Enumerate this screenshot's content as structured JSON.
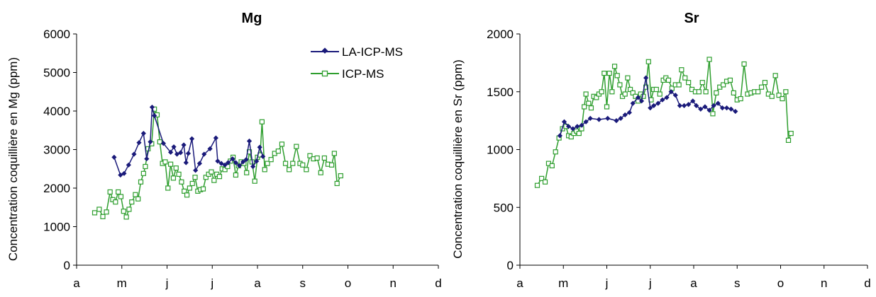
{
  "colors": {
    "la": "#1a1a7a",
    "icp": "#2e9e2e",
    "axis": "#000000",
    "background": "#ffffff"
  },
  "chart_data": [
    {
      "type": "line",
      "title": "Mg",
      "xlabel": "",
      "ylabel": "Concentration coquillière en Mg (ppm)",
      "x_ticks": [
        "a",
        "m",
        "j",
        "j",
        "a",
        "s",
        "o",
        "n",
        "d"
      ],
      "xlim": [
        0,
        8
      ],
      "ylim": [
        0,
        6000
      ],
      "y_ticks": [
        0,
        1000,
        2000,
        3000,
        4000,
        5000,
        6000
      ],
      "grid": false,
      "legend": {
        "placement": "top-right",
        "entries": [
          "LA-ICP-MS",
          "ICP-MS"
        ]
      },
      "series": [
        {
          "name": "LA-ICP-MS",
          "marker": "diamond",
          "points": [
            [
              0.83,
              2800
            ],
            [
              0.97,
              2340
            ],
            [
              1.05,
              2380
            ],
            [
              1.15,
              2600
            ],
            [
              1.27,
              2880
            ],
            [
              1.38,
              3180
            ],
            [
              1.48,
              3420
            ],
            [
              1.55,
              2760
            ],
            [
              1.63,
              3200
            ],
            [
              1.67,
              4100
            ],
            [
              1.72,
              3880
            ],
            [
              1.92,
              3160
            ],
            [
              2.08,
              2930
            ],
            [
              2.15,
              3070
            ],
            [
              2.22,
              2880
            ],
            [
              2.3,
              2920
            ],
            [
              2.37,
              3120
            ],
            [
              2.42,
              2660
            ],
            [
              2.47,
              2900
            ],
            [
              2.55,
              3280
            ],
            [
              2.63,
              2460
            ],
            [
              2.72,
              2640
            ],
            [
              2.82,
              2880
            ],
            [
              2.95,
              3020
            ],
            [
              3.08,
              3300
            ],
            [
              3.12,
              2700
            ],
            [
              3.2,
              2640
            ],
            [
              3.28,
              2600
            ],
            [
              3.35,
              2660
            ],
            [
              3.45,
              2760
            ],
            [
              3.52,
              2660
            ],
            [
              3.6,
              2580
            ],
            [
              3.68,
              2680
            ],
            [
              3.75,
              2740
            ],
            [
              3.82,
              3220
            ],
            [
              3.9,
              2560
            ],
            [
              3.98,
              2700
            ],
            [
              4.05,
              3060
            ],
            [
              4.12,
              2820
            ]
          ]
        },
        {
          "name": "ICP-MS",
          "marker": "square",
          "points": [
            [
              0.4,
              1360
            ],
            [
              0.5,
              1450
            ],
            [
              0.58,
              1260
            ],
            [
              0.66,
              1380
            ],
            [
              0.74,
              1900
            ],
            [
              0.8,
              1700
            ],
            [
              0.86,
              1640
            ],
            [
              0.92,
              1900
            ],
            [
              0.98,
              1780
            ],
            [
              1.04,
              1400
            ],
            [
              1.1,
              1250
            ],
            [
              1.16,
              1450
            ],
            [
              1.22,
              1640
            ],
            [
              1.3,
              1830
            ],
            [
              1.36,
              1720
            ],
            [
              1.42,
              2160
            ],
            [
              1.48,
              2380
            ],
            [
              1.52,
              2560
            ],
            [
              1.58,
              3020
            ],
            [
              1.66,
              3150
            ],
            [
              1.72,
              4050
            ],
            [
              1.78,
              3900
            ],
            [
              1.84,
              3200
            ],
            [
              1.9,
              2640
            ],
            [
              1.96,
              2680
            ],
            [
              2.02,
              2000
            ],
            [
              2.08,
              2620
            ],
            [
              2.14,
              2260
            ],
            [
              2.2,
              2520
            ],
            [
              2.26,
              2360
            ],
            [
              2.32,
              2160
            ],
            [
              2.38,
              1920
            ],
            [
              2.44,
              1820
            ],
            [
              2.5,
              2000
            ],
            [
              2.56,
              2120
            ],
            [
              2.62,
              2280
            ],
            [
              2.68,
              1920
            ],
            [
              2.74,
              1960
            ],
            [
              2.8,
              1980
            ],
            [
              2.86,
              2280
            ],
            [
              2.92,
              2360
            ],
            [
              2.98,
              2420
            ],
            [
              3.04,
              2200
            ],
            [
              3.1,
              2360
            ],
            [
              3.16,
              2300
            ],
            [
              3.22,
              2500
            ],
            [
              3.28,
              2480
            ],
            [
              3.34,
              2560
            ],
            [
              3.4,
              2700
            ],
            [
              3.46,
              2800
            ],
            [
              3.52,
              2340
            ],
            [
              3.58,
              2580
            ],
            [
              3.64,
              2680
            ],
            [
              3.7,
              2640
            ],
            [
              3.76,
              2400
            ],
            [
              3.82,
              2940
            ],
            [
              3.88,
              2680
            ],
            [
              3.94,
              2180
            ],
            [
              4.0,
              2800
            ],
            [
              4.06,
              2860
            ],
            [
              4.1,
              3720
            ],
            [
              4.16,
              2480
            ],
            [
              4.22,
              2640
            ],
            [
              4.3,
              2740
            ],
            [
              4.38,
              2900
            ],
            [
              4.46,
              2960
            ],
            [
              4.54,
              3140
            ],
            [
              4.62,
              2640
            ],
            [
              4.7,
              2480
            ],
            [
              4.78,
              2640
            ],
            [
              4.86,
              3080
            ],
            [
              4.94,
              2640
            ],
            [
              5.0,
              2600
            ],
            [
              5.08,
              2480
            ],
            [
              5.16,
              2840
            ],
            [
              5.24,
              2760
            ],
            [
              5.32,
              2780
            ],
            [
              5.4,
              2400
            ],
            [
              5.48,
              2780
            ],
            [
              5.56,
              2620
            ],
            [
              5.64,
              2600
            ],
            [
              5.7,
              2900
            ],
            [
              5.76,
              2120
            ],
            [
              5.84,
              2320
            ]
          ]
        }
      ]
    },
    {
      "type": "line",
      "title": "Sr",
      "xlabel": "",
      "ylabel": "Concentration coquillière en Sr (ppm)",
      "x_ticks": [
        "a",
        "m",
        "j",
        "j",
        "a",
        "s",
        "o",
        "n",
        "d"
      ],
      "xlim": [
        0,
        8
      ],
      "ylim": [
        0,
        2000
      ],
      "y_ticks": [
        0,
        500,
        1000,
        1500,
        2000
      ],
      "grid": false,
      "legend": null,
      "series": [
        {
          "name": "LA-ICP-MS",
          "marker": "diamond",
          "points": [
            [
              0.92,
              1120
            ],
            [
              1.02,
              1240
            ],
            [
              1.12,
              1200
            ],
            [
              1.22,
              1180
            ],
            [
              1.32,
              1200
            ],
            [
              1.42,
              1210
            ],
            [
              1.52,
              1240
            ],
            [
              1.62,
              1270
            ],
            [
              1.82,
              1260
            ],
            [
              2.02,
              1270
            ],
            [
              2.22,
              1250
            ],
            [
              2.32,
              1270
            ],
            [
              2.42,
              1300
            ],
            [
              2.52,
              1320
            ],
            [
              2.6,
              1400
            ],
            [
              2.72,
              1450
            ],
            [
              2.8,
              1420
            ],
            [
              2.9,
              1620
            ],
            [
              3.0,
              1360
            ],
            [
              3.08,
              1380
            ],
            [
              3.18,
              1400
            ],
            [
              3.28,
              1430
            ],
            [
              3.38,
              1450
            ],
            [
              3.48,
              1500
            ],
            [
              3.58,
              1470
            ],
            [
              3.68,
              1380
            ],
            [
              3.78,
              1380
            ],
            [
              3.88,
              1390
            ],
            [
              3.98,
              1420
            ],
            [
              4.06,
              1380
            ],
            [
              4.16,
              1350
            ],
            [
              4.26,
              1370
            ],
            [
              4.36,
              1340
            ],
            [
              4.46,
              1380
            ],
            [
              4.56,
              1400
            ],
            [
              4.66,
              1360
            ],
            [
              4.76,
              1360
            ],
            [
              4.86,
              1350
            ],
            [
              4.96,
              1330
            ]
          ]
        },
        {
          "name": "ICP-MS",
          "marker": "square",
          "points": [
            [
              0.4,
              690
            ],
            [
              0.5,
              750
            ],
            [
              0.58,
              720
            ],
            [
              0.66,
              880
            ],
            [
              0.74,
              860
            ],
            [
              0.82,
              980
            ],
            [
              0.9,
              1100
            ],
            [
              0.98,
              1180
            ],
            [
              1.06,
              1200
            ],
            [
              1.12,
              1120
            ],
            [
              1.18,
              1110
            ],
            [
              1.24,
              1140
            ],
            [
              1.3,
              1160
            ],
            [
              1.36,
              1140
            ],
            [
              1.42,
              1180
            ],
            [
              1.48,
              1370
            ],
            [
              1.52,
              1480
            ],
            [
              1.58,
              1400
            ],
            [
              1.64,
              1360
            ],
            [
              1.7,
              1460
            ],
            [
              1.76,
              1450
            ],
            [
              1.82,
              1480
            ],
            [
              1.88,
              1500
            ],
            [
              1.94,
              1660
            ],
            [
              2.0,
              1370
            ],
            [
              2.06,
              1660
            ],
            [
              2.12,
              1500
            ],
            [
              2.18,
              1720
            ],
            [
              2.24,
              1640
            ],
            [
              2.3,
              1560
            ],
            [
              2.36,
              1460
            ],
            [
              2.42,
              1480
            ],
            [
              2.48,
              1620
            ],
            [
              2.54,
              1520
            ],
            [
              2.6,
              1490
            ],
            [
              2.66,
              1460
            ],
            [
              2.72,
              1420
            ],
            [
              2.78,
              1480
            ],
            [
              2.84,
              1460
            ],
            [
              2.9,
              1540
            ],
            [
              2.96,
              1760
            ],
            [
              3.02,
              1430
            ],
            [
              3.08,
              1520
            ],
            [
              3.14,
              1520
            ],
            [
              3.22,
              1480
            ],
            [
              3.3,
              1600
            ],
            [
              3.36,
              1620
            ],
            [
              3.42,
              1600
            ],
            [
              3.5,
              1530
            ],
            [
              3.58,
              1560
            ],
            [
              3.66,
              1560
            ],
            [
              3.72,
              1690
            ],
            [
              3.8,
              1620
            ],
            [
              3.88,
              1580
            ],
            [
              3.96,
              1520
            ],
            [
              4.04,
              1500
            ],
            [
              4.12,
              1500
            ],
            [
              4.2,
              1580
            ],
            [
              4.28,
              1500
            ],
            [
              4.36,
              1780
            ],
            [
              4.44,
              1310
            ],
            [
              4.52,
              1490
            ],
            [
              4.6,
              1540
            ],
            [
              4.68,
              1560
            ],
            [
              4.76,
              1590
            ],
            [
              4.84,
              1600
            ],
            [
              4.92,
              1490
            ],
            [
              5.0,
              1430
            ],
            [
              5.08,
              1440
            ],
            [
              5.16,
              1740
            ],
            [
              5.24,
              1480
            ],
            [
              5.32,
              1490
            ],
            [
              5.4,
              1500
            ],
            [
              5.48,
              1500
            ],
            [
              5.56,
              1540
            ],
            [
              5.64,
              1580
            ],
            [
              5.72,
              1480
            ],
            [
              5.8,
              1460
            ],
            [
              5.88,
              1640
            ],
            [
              5.96,
              1470
            ],
            [
              6.04,
              1440
            ],
            [
              6.12,
              1500
            ],
            [
              6.18,
              1080
            ],
            [
              6.24,
              1140
            ]
          ]
        }
      ]
    }
  ]
}
